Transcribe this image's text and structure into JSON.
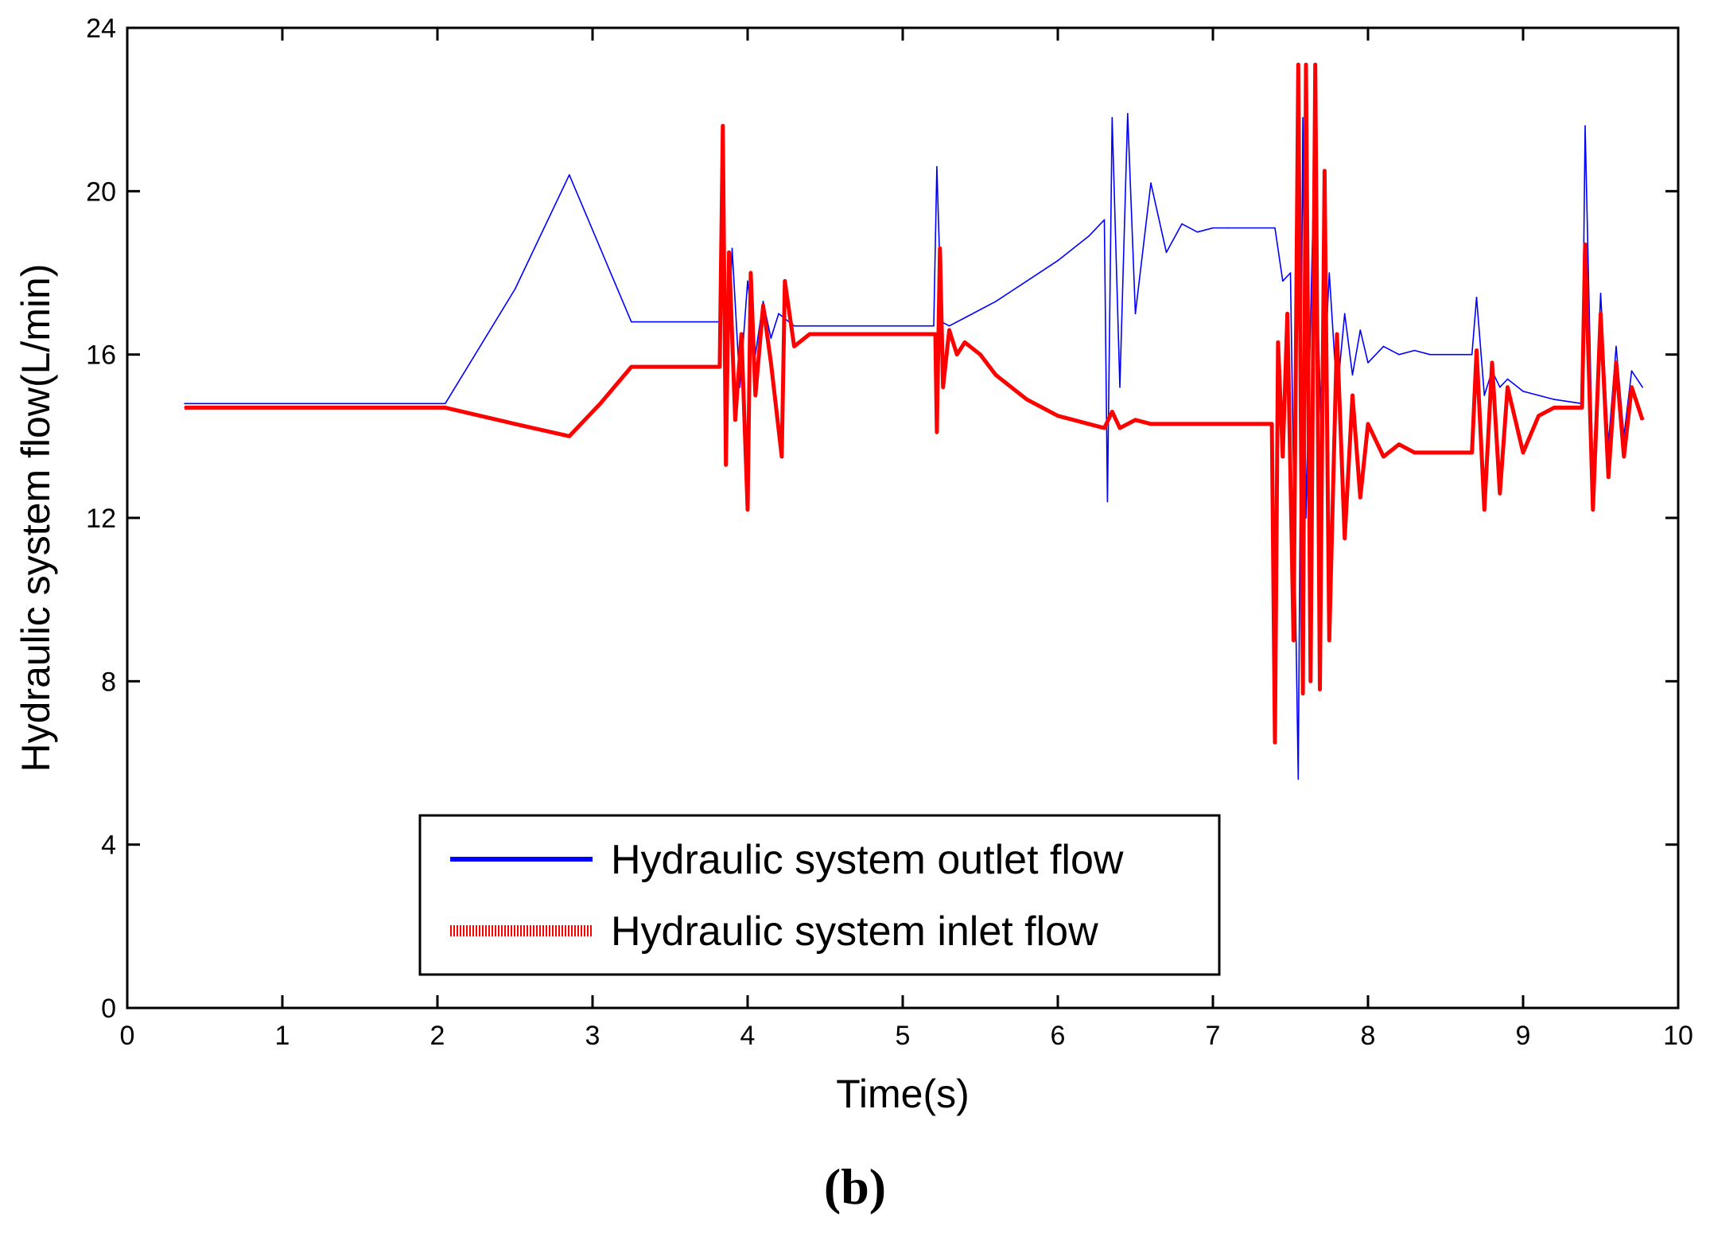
{
  "panel_label": "(b)",
  "colors": {
    "outlet": "#0000ff",
    "inlet": "#ff0000",
    "axes": "#000000",
    "background": "#ffffff"
  },
  "chart_data": {
    "type": "line",
    "title": "",
    "xlabel": "Time(s)",
    "ylabel": "Hydraulic system flow(L/min)",
    "xlim": [
      0,
      10
    ],
    "ylim": [
      0,
      24
    ],
    "xticks": [
      "0",
      "1",
      "2",
      "3",
      "4",
      "5",
      "6",
      "7",
      "8",
      "9",
      "10"
    ],
    "yticks": [
      "0",
      "4",
      "8",
      "12",
      "16",
      "20",
      "24"
    ],
    "grid": false,
    "legend_position": "bottom-center",
    "series": [
      {
        "name": "Hydraulic system outlet flow",
        "color": "#0000ff",
        "style": "solid-thin",
        "x": [
          0.37,
          2.05,
          2.5,
          2.85,
          3.05,
          3.25,
          3.82,
          3.84,
          3.86,
          3.9,
          3.95,
          4.0,
          4.05,
          4.1,
          4.15,
          4.2,
          4.3,
          4.4,
          5.2,
          5.22,
          5.25,
          5.3,
          5.4,
          5.6,
          5.8,
          6.0,
          6.2,
          6.3,
          6.32,
          6.35,
          6.4,
          6.45,
          6.5,
          6.6,
          6.7,
          6.8,
          6.9,
          7.0,
          7.1,
          7.4,
          7.45,
          7.5,
          7.55,
          7.58,
          7.6,
          7.65,
          7.7,
          7.75,
          7.8,
          7.85,
          7.9,
          7.95,
          8.0,
          8.1,
          8.2,
          8.3,
          8.4,
          8.67,
          8.7,
          8.75,
          8.8,
          8.85,
          8.9,
          9.0,
          9.1,
          9.2,
          9.38,
          9.4,
          9.45,
          9.5,
          9.55,
          9.6,
          9.65,
          9.7,
          9.77
        ],
        "y": [
          14.8,
          14.8,
          17.6,
          20.4,
          18.6,
          16.8,
          16.8,
          20.5,
          14.5,
          18.6,
          15.2,
          17.8,
          16.0,
          17.3,
          16.4,
          17.0,
          16.7,
          16.7,
          16.7,
          20.6,
          16.8,
          16.7,
          16.9,
          17.3,
          17.8,
          18.3,
          18.9,
          19.3,
          12.4,
          21.8,
          15.2,
          21.9,
          17.0,
          20.2,
          18.5,
          19.2,
          19.0,
          19.1,
          19.1,
          19.1,
          17.8,
          18.0,
          5.6,
          21.8,
          12.0,
          20.2,
          14.0,
          18.0,
          15.0,
          17.0,
          15.5,
          16.6,
          15.8,
          16.2,
          16.0,
          16.1,
          16.0,
          16.0,
          17.4,
          15.0,
          15.6,
          15.2,
          15.4,
          15.1,
          15.0,
          14.9,
          14.8,
          21.6,
          13.0,
          17.5,
          13.8,
          16.2,
          14.0,
          15.6,
          15.2
        ]
      },
      {
        "name": "Hydraulic system inlet flow",
        "color": "#ff0000",
        "style": "dense-oscillating",
        "x": [
          0.37,
          2.05,
          2.5,
          2.85,
          3.05,
          3.25,
          3.82,
          3.84,
          3.86,
          3.88,
          3.92,
          3.96,
          4.0,
          4.02,
          4.05,
          4.1,
          4.15,
          4.22,
          4.24,
          4.3,
          4.4,
          5.21,
          5.22,
          5.24,
          5.26,
          5.3,
          5.35,
          5.4,
          5.5,
          5.6,
          5.8,
          6.0,
          6.2,
          6.3,
          6.35,
          6.4,
          6.5,
          6.6,
          7.0,
          7.38,
          7.4,
          7.42,
          7.45,
          7.48,
          7.52,
          7.55,
          7.58,
          7.6,
          7.63,
          7.66,
          7.69,
          7.72,
          7.75,
          7.8,
          7.85,
          7.9,
          7.95,
          8.0,
          8.1,
          8.2,
          8.3,
          8.67,
          8.7,
          8.75,
          8.8,
          8.85,
          8.9,
          9.0,
          9.1,
          9.2,
          9.38,
          9.4,
          9.45,
          9.5,
          9.55,
          9.6,
          9.65,
          9.7,
          9.77
        ],
        "y": [
          14.7,
          14.7,
          14.3,
          14.0,
          14.8,
          15.7,
          15.7,
          21.6,
          13.3,
          18.5,
          14.4,
          16.5,
          12.2,
          18.0,
          15.0,
          17.2,
          15.8,
          13.5,
          17.8,
          16.2,
          16.5,
          16.5,
          14.1,
          18.6,
          15.2,
          16.6,
          16.0,
          16.3,
          16.0,
          15.5,
          14.9,
          14.5,
          14.3,
          14.2,
          14.6,
          14.2,
          14.4,
          14.3,
          14.3,
          14.3,
          6.5,
          16.3,
          13.5,
          17.0,
          9.0,
          23.1,
          7.7,
          23.1,
          8.0,
          23.1,
          7.8,
          20.5,
          9.0,
          16.5,
          11.5,
          15.0,
          12.5,
          14.3,
          13.5,
          13.8,
          13.6,
          13.6,
          16.1,
          12.2,
          15.8,
          12.6,
          15.2,
          13.6,
          14.5,
          14.7,
          14.7,
          18.7,
          12.2,
          17.0,
          13.0,
          15.8,
          13.5,
          15.2,
          14.4
        ]
      }
    ]
  }
}
